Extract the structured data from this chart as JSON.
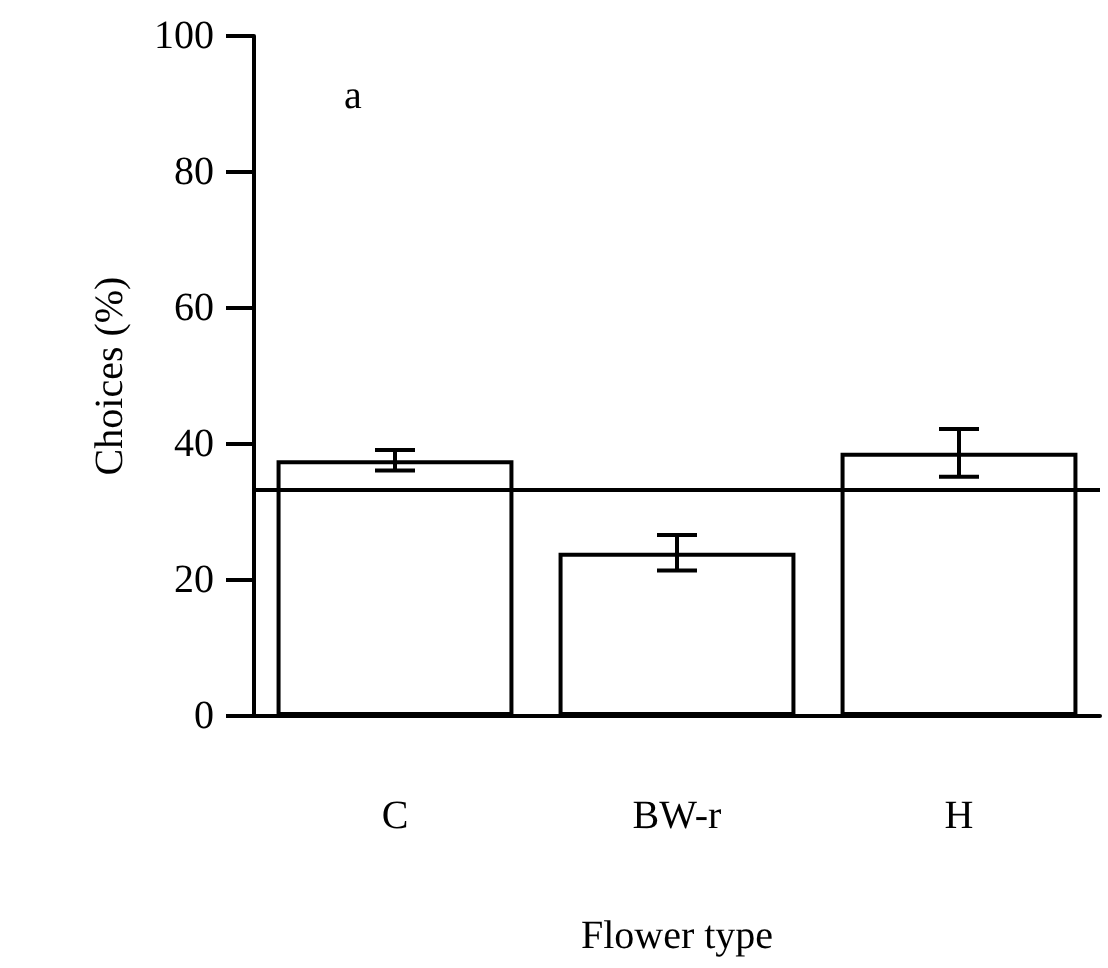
{
  "chart_data": {
    "type": "bar",
    "xlabel": "Flower type",
    "ylabel": "Choices (%)",
    "annotations": [
      "a"
    ],
    "categories": [
      "C",
      "BW-r",
      "H"
    ],
    "values": [
      37.6,
      24,
      38.7
    ],
    "errors": [
      1.5,
      2.6,
      3.5
    ],
    "color": "#ffffff",
    "ylim": [
      0,
      100
    ],
    "yticks": [
      0,
      20,
      40,
      60,
      80,
      100
    ],
    "ref_lines": [
      {
        "axis": "y",
        "value": 33.3,
        "label": null
      }
    ],
    "grid": false
  }
}
